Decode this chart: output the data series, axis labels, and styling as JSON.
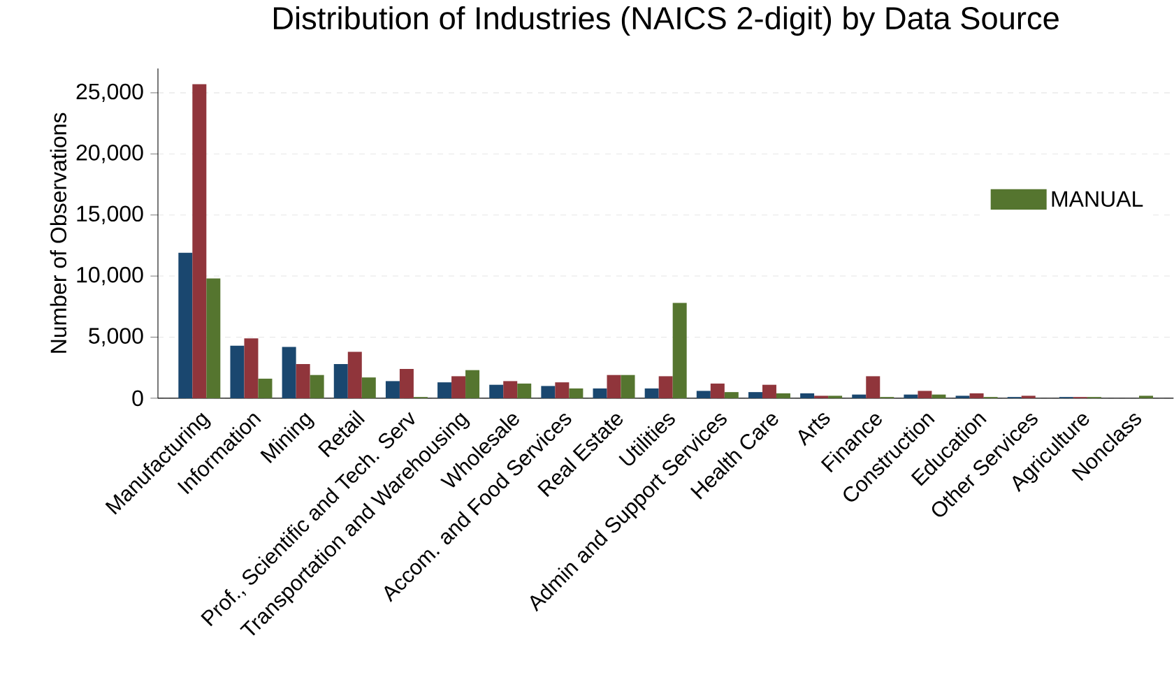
{
  "chart_data": {
    "type": "bar",
    "title": "Distribution of Industries (NAICS 2-digit) by Data Source",
    "ylabel": "Number of Observations",
    "categories": [
      "Manufacturing",
      "Information",
      "Mining",
      "Retail",
      "Prof., Scientific and Tech. Serv",
      "Transportation and Warehousing",
      "Wholesale",
      "Accom. and Food Services",
      "Real Estate",
      "Utilities",
      "Admin and Support Services",
      "Health Care",
      "Arts",
      "Finance",
      "Construction",
      "Education",
      "Other Services",
      "Agriculture",
      "Nonclass"
    ],
    "series": [
      {
        "color": "#1a476f",
        "values": [
          11900,
          4300,
          4200,
          2800,
          1400,
          1300,
          1100,
          1000,
          800,
          800,
          600,
          500,
          400,
          300,
          300,
          200,
          100,
          100,
          0
        ]
      },
      {
        "color": "#90353b",
        "values": [
          25700,
          4900,
          2800,
          3800,
          2400,
          1800,
          1400,
          1300,
          1900,
          1800,
          1200,
          1100,
          200,
          1800,
          600,
          400,
          200,
          100,
          0
        ]
      },
      {
        "name": "MANUAL",
        "color": "#55752f",
        "values": [
          9800,
          1600,
          1900,
          1700,
          100,
          2300,
          1200,
          800,
          1900,
          7800,
          500,
          400,
          200,
          100,
          300,
          100,
          0,
          100,
          200
        ]
      }
    ],
    "ylim": [
      0,
      27000
    ],
    "yticks": [
      {
        "value": 0,
        "label": "0"
      },
      {
        "value": 5000,
        "label": "5,000"
      },
      {
        "value": 10000,
        "label": "10,000"
      },
      {
        "value": 15000,
        "label": "15,000"
      },
      {
        "value": 20000,
        "label": "20,000"
      },
      {
        "value": 25000,
        "label": "25,000"
      }
    ],
    "grid": "y",
    "legend": "right"
  }
}
